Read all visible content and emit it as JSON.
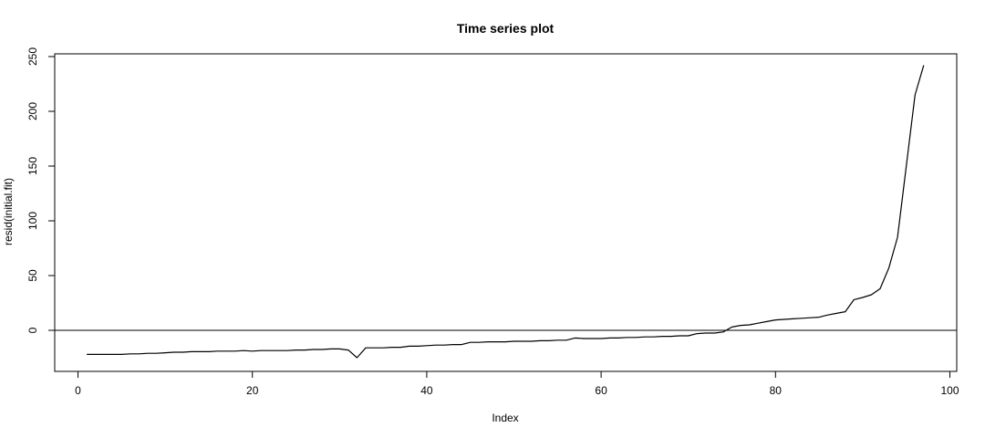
{
  "chart_data": {
    "type": "line",
    "title": "Time series plot",
    "xlabel": "Index",
    "ylabel": "resid(initial.fit)",
    "xlim": [
      0,
      100
    ],
    "ylim": [
      -30,
      250
    ],
    "xticks": [
      0,
      20,
      40,
      60,
      80,
      100
    ],
    "yticks": [
      0,
      50,
      100,
      150,
      200,
      250
    ],
    "grid": false,
    "reference_line": {
      "y": 0,
      "color": "#000000"
    },
    "series": [
      {
        "color": "#000000",
        "x": [
          1,
          2,
          3,
          4,
          5,
          6,
          7,
          8,
          9,
          10,
          11,
          12,
          13,
          14,
          15,
          16,
          17,
          18,
          19,
          20,
          21,
          22,
          23,
          24,
          25,
          26,
          27,
          28,
          29,
          30,
          31,
          32,
          33,
          34,
          35,
          36,
          37,
          38,
          39,
          40,
          41,
          42,
          43,
          44,
          45,
          46,
          47,
          48,
          49,
          50,
          51,
          52,
          53,
          54,
          55,
          56,
          57,
          58,
          59,
          60,
          61,
          62,
          63,
          64,
          65,
          66,
          67,
          68,
          69,
          70,
          71,
          72,
          73,
          74,
          75,
          76,
          77,
          78,
          79,
          80,
          81,
          82,
          83,
          84,
          85,
          86,
          87,
          88,
          89,
          90,
          91,
          92,
          93,
          94,
          95,
          96,
          97
        ],
        "y": [
          -22,
          -22,
          -22,
          -22,
          -22,
          -21.5,
          -21.5,
          -21,
          -21,
          -20.5,
          -20,
          -20,
          -19.5,
          -19.5,
          -19.5,
          -19,
          -19,
          -19,
          -18.5,
          -19,
          -18.5,
          -18.5,
          -18.5,
          -18.5,
          -18,
          -18,
          -17.5,
          -17.5,
          -17,
          -17,
          -18,
          -25,
          -16,
          -16,
          -16,
          -15.5,
          -15.5,
          -14.5,
          -14.5,
          -14,
          -13.5,
          -13.5,
          -13,
          -13,
          -11,
          -11,
          -10.5,
          -10.5,
          -10.5,
          -10,
          -10,
          -10,
          -9.5,
          -9.5,
          -9,
          -9,
          -7,
          -7.5,
          -7.5,
          -7.5,
          -7,
          -7,
          -6.5,
          -6.5,
          -6,
          -6,
          -5.5,
          -5.5,
          -5,
          -5,
          -3,
          -2.5,
          -2.5,
          -1.5,
          3,
          4.5,
          5,
          6.5,
          8,
          9.5,
          10,
          10.5,
          11,
          11.5,
          12,
          14,
          15.5,
          17,
          28,
          30,
          32.5,
          38,
          57,
          85,
          150,
          215,
          242
        ]
      }
    ]
  }
}
